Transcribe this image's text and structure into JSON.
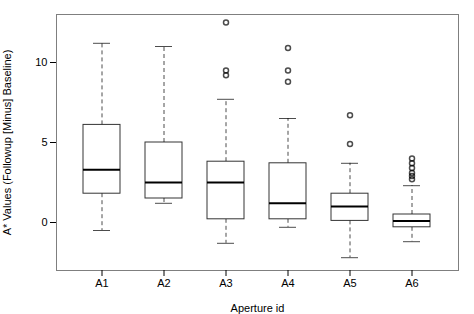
{
  "chart_data": {
    "type": "box",
    "xlabel": "Aperture id",
    "ylabel": "A* Values (Followup [Minus] Baseline)",
    "categories": [
      "A1",
      "A2",
      "A3",
      "A4",
      "A5",
      "A6"
    ],
    "boxes": [
      {
        "whisker_low": -0.5,
        "q1": 1.8,
        "median": 3.3,
        "q3": 6.1,
        "whisker_high": 11.2,
        "outliers": []
      },
      {
        "whisker_low": 1.2,
        "q1": 1.5,
        "median": 2.5,
        "q3": 5.0,
        "whisker_high": 11.0,
        "outliers": []
      },
      {
        "whisker_low": -1.3,
        "q1": 0.2,
        "median": 2.5,
        "q3": 3.8,
        "whisker_high": 7.7,
        "outliers": [
          9.2,
          9.5,
          12.5
        ]
      },
      {
        "whisker_low": -0.3,
        "q1": 0.2,
        "median": 1.2,
        "q3": 3.7,
        "whisker_high": 6.5,
        "outliers": [
          8.8,
          9.5,
          10.9
        ]
      },
      {
        "whisker_low": -2.2,
        "q1": 0.1,
        "median": 1.0,
        "q3": 1.8,
        "whisker_high": 3.7,
        "outliers": [
          4.9,
          6.7
        ]
      },
      {
        "whisker_low": -1.2,
        "q1": -0.3,
        "median": 0.1,
        "q3": 0.5,
        "whisker_high": 2.3,
        "outliers": [
          3.7,
          3.4,
          3.1,
          2.9,
          2.7,
          4.0
        ]
      }
    ],
    "ylim": [
      -3.0,
      13.0
    ],
    "yticks": [
      0,
      5,
      10
    ]
  }
}
